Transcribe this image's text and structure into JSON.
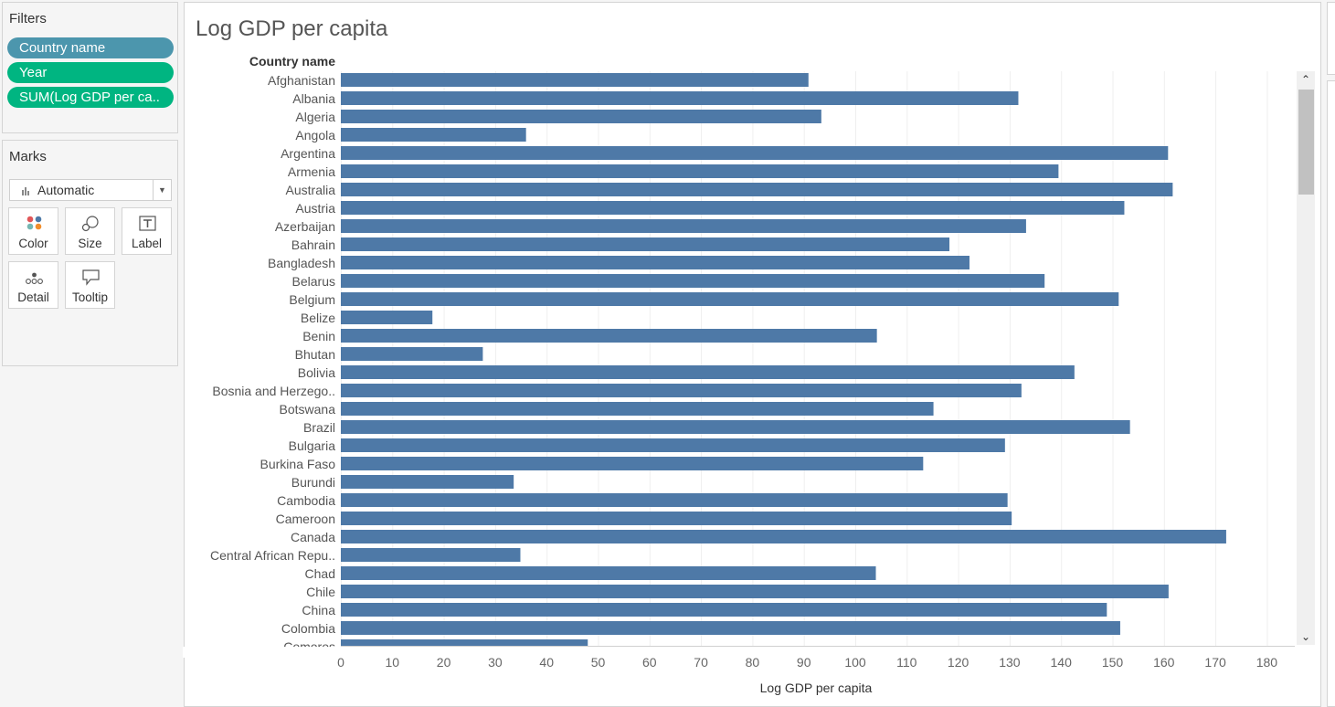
{
  "filters": {
    "title": "Filters",
    "pills": [
      {
        "label": "Country name",
        "color": "#4c96ad"
      },
      {
        "label": "Year",
        "color": "#00b581"
      },
      {
        "label": "SUM(Log GDP per ca..",
        "color": "#00b581"
      }
    ]
  },
  "marks": {
    "title": "Marks",
    "type_label": "Automatic",
    "buttons": [
      {
        "label": "Color",
        "icon": "color-dots-icon"
      },
      {
        "label": "Size",
        "icon": "size-circles-icon"
      },
      {
        "label": "Label",
        "icon": "text-label-icon"
      },
      {
        "label": "Detail",
        "icon": "detail-dots-icon"
      },
      {
        "label": "Tooltip",
        "icon": "tooltip-bubble-icon"
      }
    ]
  },
  "scrollbar": {
    "up": "⌃",
    "down": "⌄"
  },
  "chart_data": {
    "type": "bar",
    "orientation": "horizontal",
    "title": "Log GDP per capita",
    "row_header": "Country name",
    "xlabel": "Log GDP per capita",
    "bar_color": "#4e79a7",
    "xlim": [
      0,
      185
    ],
    "xticks": [
      0,
      10,
      20,
      30,
      40,
      50,
      60,
      70,
      80,
      90,
      100,
      110,
      120,
      130,
      140,
      150,
      160,
      170,
      180
    ],
    "categories": [
      "Afghanistan",
      "Albania",
      "Algeria",
      "Angola",
      "Argentina",
      "Armenia",
      "Australia",
      "Austria",
      "Azerbaijan",
      "Bahrain",
      "Bangladesh",
      "Belarus",
      "Belgium",
      "Belize",
      "Benin",
      "Bhutan",
      "Bolivia",
      "Bosnia and Herzego..",
      "Botswana",
      "Brazil",
      "Bulgaria",
      "Burkina Faso",
      "Burundi",
      "Cambodia",
      "Cameroon",
      "Canada",
      "Central African Repu..",
      "Chad",
      "Chile",
      "China",
      "Colombia",
      "Comoros"
    ],
    "values": [
      90.9,
      131.7,
      93.4,
      36.0,
      160.8,
      139.5,
      161.7,
      152.3,
      133.2,
      118.3,
      122.2,
      136.8,
      151.2,
      17.8,
      104.2,
      27.6,
      142.6,
      132.3,
      115.2,
      153.4,
      129.1,
      113.2,
      33.6,
      129.6,
      130.4,
      172.1,
      34.9,
      104.0,
      160.9,
      148.9,
      151.5,
      48.0
    ]
  }
}
